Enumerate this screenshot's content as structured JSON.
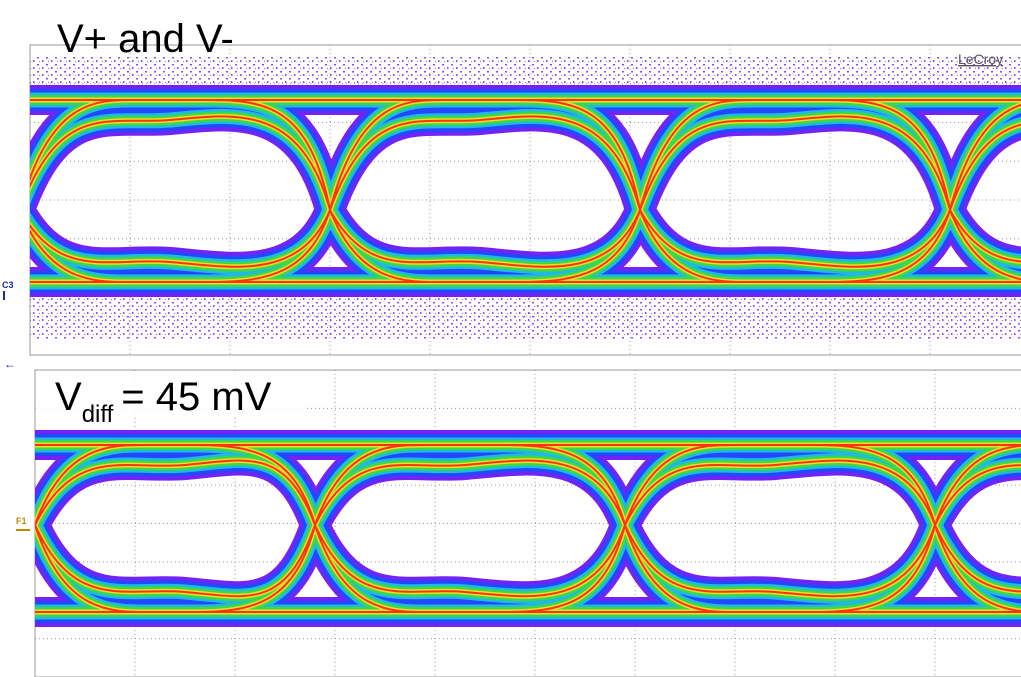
{
  "panels": [
    {
      "title": "V+ and V-",
      "channel": "C3",
      "brand": "LeCroy"
    },
    {
      "title": {
        "main": "V",
        "subscript": "diff",
        "rest": "= 45 mV"
      },
      "channel": "F1"
    }
  ]
}
